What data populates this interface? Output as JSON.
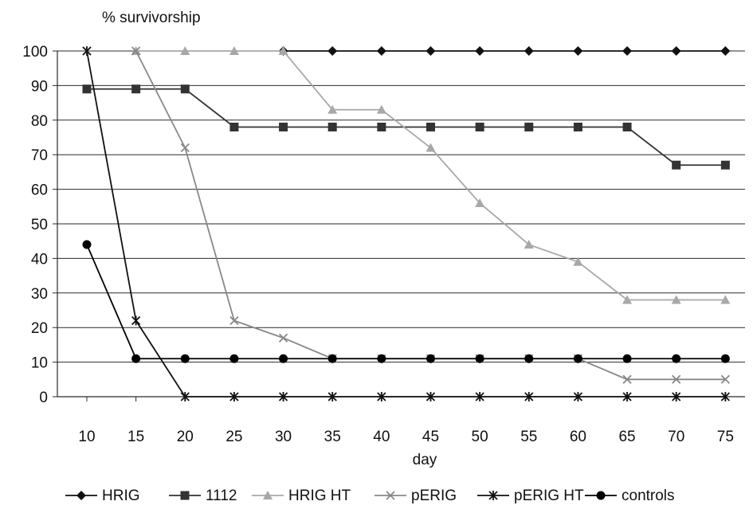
{
  "chart_data": {
    "type": "line",
    "title": "",
    "ylabel": "% survivorship",
    "xlabel": "day",
    "x": [
      10,
      15,
      20,
      25,
      30,
      35,
      40,
      45,
      50,
      55,
      60,
      65,
      70,
      75
    ],
    "ylim": [
      0,
      100
    ],
    "yticks": [
      0,
      10,
      20,
      30,
      40,
      50,
      60,
      70,
      80,
      90,
      100
    ],
    "grid": true,
    "legend_position": "bottom",
    "series": [
      {
        "name": "HRIG",
        "marker": "diamond",
        "color": "#111111",
        "values": [
          null,
          null,
          null,
          null,
          100,
          100,
          100,
          100,
          100,
          100,
          100,
          100,
          100,
          100
        ]
      },
      {
        "name": "1112",
        "marker": "square",
        "color": "#333333",
        "values": [
          89,
          89,
          89,
          78,
          78,
          78,
          78,
          78,
          78,
          78,
          78,
          78,
          67,
          67
        ]
      },
      {
        "name": "HRIG HT",
        "marker": "triangle",
        "color": "#a8a8a8",
        "values": [
          null,
          100,
          100,
          100,
          100,
          83,
          83,
          72,
          56,
          44,
          39,
          28,
          28,
          28
        ]
      },
      {
        "name": "pERIG",
        "marker": "x",
        "color": "#888888",
        "values": [
          100,
          100,
          72,
          22,
          17,
          11,
          11,
          11,
          11,
          11,
          11,
          5,
          5,
          5
        ]
      },
      {
        "name": "pERIG HT",
        "marker": "star",
        "color": "#111111",
        "values": [
          100,
          22,
          0,
          0,
          0,
          0,
          0,
          0,
          0,
          0,
          0,
          0,
          0,
          0
        ]
      },
      {
        "name": "controls",
        "marker": "circle",
        "color": "#000000",
        "values": [
          44,
          11,
          11,
          11,
          11,
          11,
          11,
          11,
          11,
          11,
          11,
          11,
          11,
          11
        ]
      }
    ]
  }
}
